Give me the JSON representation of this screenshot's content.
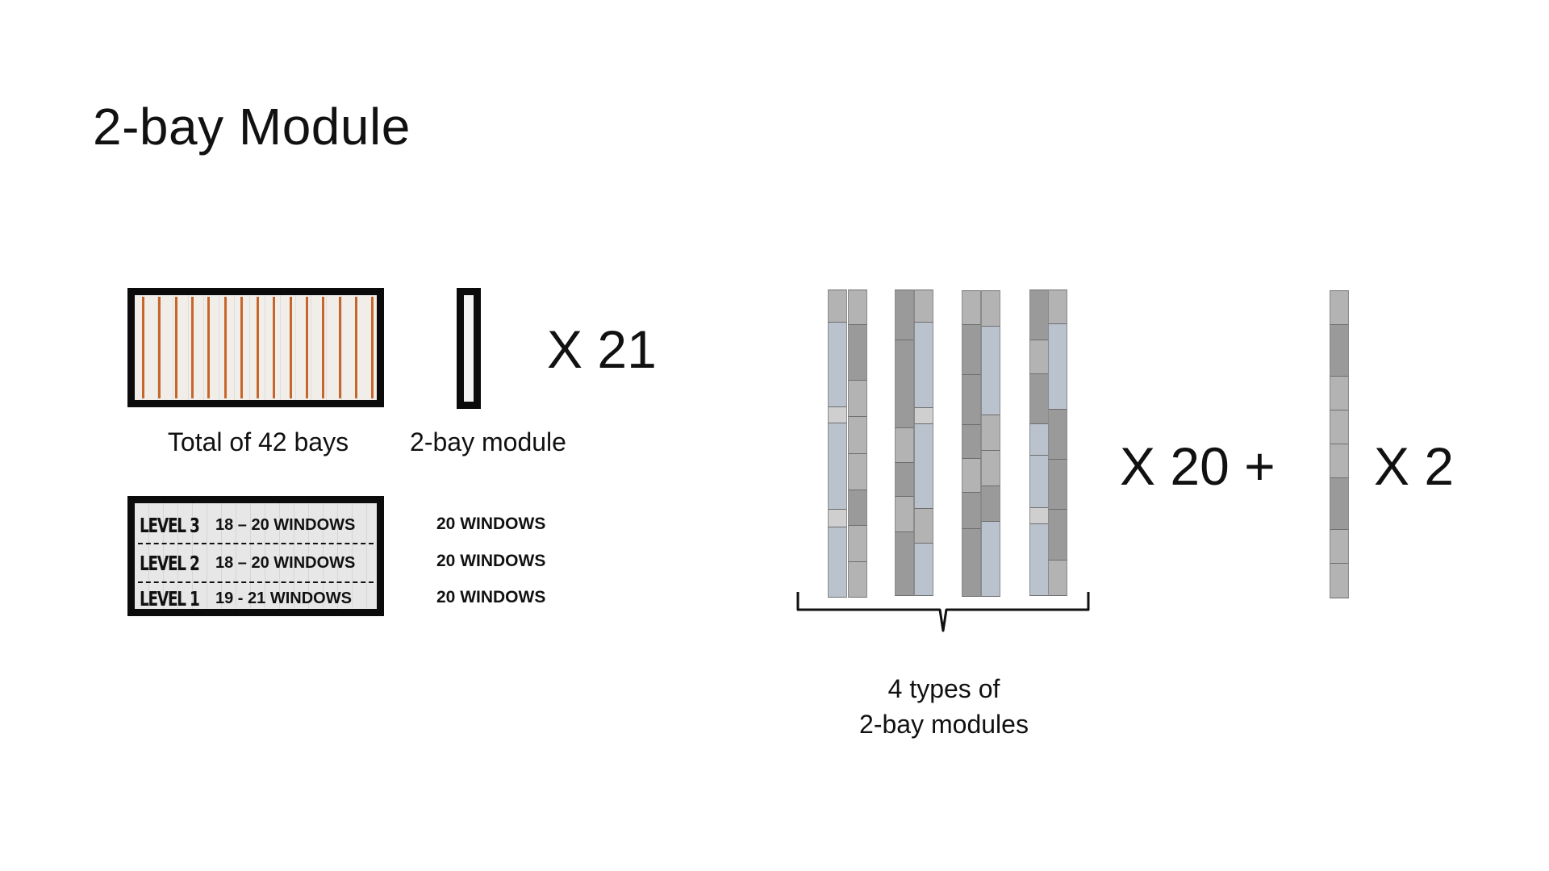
{
  "title": "2-bay Module",
  "left": {
    "bays_caption": "Total of 42 bays",
    "module_caption": "2-bay module",
    "module_multiplier": "X 21",
    "levels": [
      {
        "name": "LEVEL 3",
        "windows": "18 – 20 WINDOWS",
        "target": "20 WINDOWS"
      },
      {
        "name": "LEVEL 2",
        "windows": "18 – 20 WINDOWS",
        "target": "20 WINDOWS"
      },
      {
        "name": "LEVEL 1",
        "windows": "19 - 21 WINDOWS",
        "target": "20 WINDOWS"
      }
    ]
  },
  "right": {
    "types_caption_line1": "4 types of",
    "types_caption_line2": "2-bay modules",
    "types_multiplier": "X 20 +",
    "single_multiplier": "X 2"
  },
  "colors": {
    "frame": "#0b0b0b",
    "bay_line": "#c8662a",
    "panel_dark": "#9a9a9a",
    "panel_mid": "#b3b3b3",
    "panel_light": "#cfcfcf",
    "panel_blue": "#b9c2cd"
  }
}
